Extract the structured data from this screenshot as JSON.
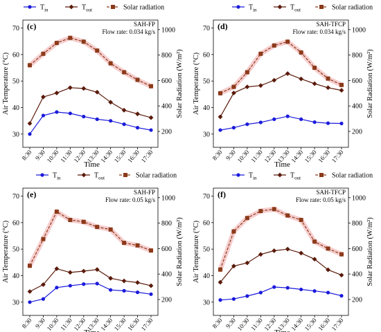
{
  "chart_data": [
    {
      "type": "line",
      "panel_label": "(c)",
      "system": "SAH-FP",
      "flow_rate": "Flow rate: 0.034 kg/s",
      "xlabel": "Time",
      "ylabel_left": "Air Temperature (°C)",
      "ylabel_right": "Solar Radiation (W/m²)",
      "categories": [
        "8:30",
        "9:30",
        "10:30",
        "11:30",
        "12:30",
        "13:30",
        "14:30",
        "15:30",
        "16:30",
        "17:30"
      ],
      "left_axis": {
        "lim": [
          25,
          73
        ],
        "ticks": [
          30,
          40,
          50,
          60,
          70
        ]
      },
      "right_axis": {
        "lim": [
          75,
          1075
        ],
        "ticks": [
          200,
          400,
          600,
          800,
          1000
        ]
      },
      "legend": {
        "placement": "top",
        "entries": [
          {
            "main": "T",
            "sub": "in"
          },
          {
            "main": "T",
            "sub": "out"
          },
          {
            "main": "Solar radiation",
            "sub": ""
          }
        ]
      },
      "series": [
        {
          "name": "Tin",
          "axis": "left",
          "color": "#1a1adb",
          "marker": "circle",
          "values": [
            30.0,
            37.0,
            38.3,
            37.8,
            36.6,
            35.6,
            35.0,
            33.7,
            32.4,
            31.5
          ]
        },
        {
          "name": "Tout",
          "axis": "left",
          "color": "#5a1a0a",
          "marker": "diamond",
          "values": [
            34.0,
            44.0,
            45.5,
            47.5,
            47.2,
            45.8,
            42.0,
            39.0,
            37.6,
            36.2
          ]
        },
        {
          "name": "Solar radiation",
          "axis": "right",
          "color": "#8b3a1a",
          "marker": "square",
          "values": [
            720,
            810,
            895,
            935,
            905,
            835,
            735,
            665,
            605,
            555
          ]
        }
      ]
    },
    {
      "type": "line",
      "panel_label": "(d)",
      "system": "SAH-TFCP",
      "flow_rate": "Flow rate: 0.034 kg/s",
      "xlabel": "Time",
      "ylabel_left": "Air Temperature (°C)",
      "ylabel_right": "Solar Radiation (W/m²)",
      "categories": [
        "8:30",
        "9:30",
        "10:30",
        "11:30",
        "12:30",
        "13:30",
        "14:30",
        "15:30",
        "16:30",
        "17:30"
      ],
      "left_axis": {
        "lim": [
          25,
          73
        ],
        "ticks": [
          30,
          40,
          50,
          60,
          70
        ]
      },
      "right_axis": {
        "lim": [
          75,
          1075
        ],
        "ticks": [
          200,
          400,
          600,
          800,
          1000
        ]
      },
      "legend": {
        "placement": "top",
        "entries": [
          {
            "main": "T",
            "sub": "in"
          },
          {
            "main": "T",
            "sub": "out"
          },
          {
            "main": "Solar radiation",
            "sub": ""
          }
        ]
      },
      "series": [
        {
          "name": "Tin",
          "axis": "left",
          "color": "#1a1adb",
          "marker": "circle",
          "values": [
            31.5,
            32.4,
            33.7,
            34.4,
            35.6,
            36.7,
            35.6,
            34.5,
            34.1,
            34.0
          ]
        },
        {
          "name": "Tout",
          "axis": "left",
          "color": "#5a1a0a",
          "marker": "diamond",
          "values": [
            36.5,
            45.5,
            47.8,
            48.3,
            50.3,
            52.8,
            50.8,
            49.0,
            47.5,
            46.5
          ]
        },
        {
          "name": "Solar radiation",
          "axis": "right",
          "color": "#8b3a1a",
          "marker": "square",
          "values": [
            500,
            550,
            665,
            810,
            875,
            905,
            820,
            700,
            615,
            565
          ]
        }
      ]
    },
    {
      "type": "line",
      "panel_label": "(e)",
      "system": "SAH-FP",
      "flow_rate": "Flow rate: 0.05 kg/s",
      "xlabel": "Time",
      "ylabel_left": "Air Temperature (°C)",
      "ylabel_right": "Solar Radiation (W/m²)",
      "categories": [
        "8:30",
        "9:30",
        "10:30",
        "11:30",
        "12:30",
        "13:30",
        "14:30",
        "15:30",
        "16:30",
        "17:30"
      ],
      "left_axis": {
        "lim": [
          25,
          73
        ],
        "ticks": [
          30,
          40,
          50,
          60,
          70
        ]
      },
      "right_axis": {
        "lim": [
          75,
          1075
        ],
        "ticks": [
          200,
          400,
          600,
          800,
          1000
        ]
      },
      "legend": {
        "placement": "top",
        "entries": [
          {
            "main": "T",
            "sub": "in"
          },
          {
            "main": "T",
            "sub": "out"
          },
          {
            "main": "Solar radiation",
            "sub": ""
          }
        ]
      },
      "series": [
        {
          "name": "Tin",
          "axis": "left",
          "color": "#1a1adb",
          "marker": "circle",
          "values": [
            30.0,
            31.2,
            35.5,
            36.2,
            36.8,
            37.0,
            34.6,
            34.3,
            33.7,
            33.0
          ]
        },
        {
          "name": "Tout",
          "axis": "left",
          "color": "#5a1a0a",
          "marker": "diamond",
          "values": [
            34.0,
            36.6,
            42.6,
            41.2,
            41.7,
            42.3,
            39.0,
            38.0,
            37.4,
            36.2
          ]
        },
        {
          "name": "Solar radiation",
          "axis": "right",
          "color": "#8b3a1a",
          "marker": "square",
          "values": [
            465,
            675,
            890,
            825,
            810,
            770,
            750,
            645,
            625,
            585
          ]
        }
      ]
    },
    {
      "type": "line",
      "panel_label": "(f)",
      "system": "SAH-TFCP",
      "flow_rate": "Flow rate: 0.05 kg/s",
      "xlabel": "Time",
      "ylabel_left": "Air Temperature (°C)",
      "ylabel_right": "Solar Radiation (W/m²)",
      "categories": [
        "8:30",
        "9:30",
        "10:30",
        "11:30",
        "12:30",
        "13:30",
        "14:30",
        "15:30",
        "16:30",
        "17:30"
      ],
      "left_axis": {
        "lim": [
          25,
          73
        ],
        "ticks": [
          30,
          40,
          50,
          60,
          70
        ]
      },
      "right_axis": {
        "lim": [
          75,
          1075
        ],
        "ticks": [
          200,
          400,
          600,
          800,
          1000
        ]
      },
      "legend": {
        "placement": "top",
        "entries": [
          {
            "main": "T",
            "sub": "in"
          },
          {
            "main": "T",
            "sub": "out"
          },
          {
            "main": "Solar radiation",
            "sub": ""
          }
        ]
      },
      "series": [
        {
          "name": "Tin",
          "axis": "left",
          "color": "#1a1adb",
          "marker": "circle",
          "values": [
            30.8,
            31.2,
            32.3,
            33.6,
            35.7,
            35.4,
            34.8,
            34.2,
            33.6,
            32.4
          ]
        },
        {
          "name": "Tout",
          "axis": "left",
          "color": "#5a1a0a",
          "marker": "diamond",
          "values": [
            37.5,
            43.6,
            44.8,
            48.0,
            49.4,
            50.0,
            48.5,
            46.2,
            42.2,
            40.2
          ]
        },
        {
          "name": "Solar radiation",
          "axis": "right",
          "color": "#8b3a1a",
          "marker": "square",
          "values": [
            435,
            735,
            840,
            895,
            910,
            860,
            825,
            655,
            600,
            555
          ]
        }
      ]
    }
  ]
}
